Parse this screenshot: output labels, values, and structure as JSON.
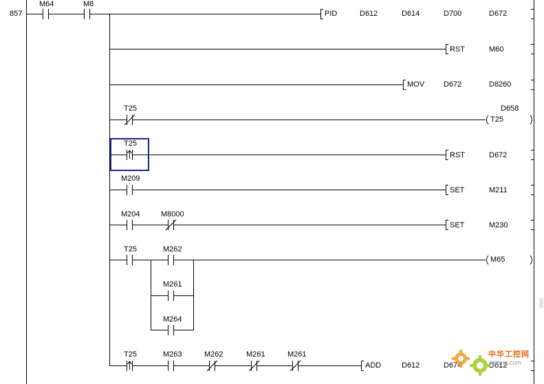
{
  "step_number": "857",
  "rungs": {
    "r1": {
      "contact_a": "M64",
      "contact_b": "M8",
      "instr": "PID",
      "op1": "D612",
      "op2": "D614",
      "op3": "D700",
      "op4": "D672"
    },
    "r2": {
      "instr": "RST",
      "op1": "M60"
    },
    "r3": {
      "instr": "MOV",
      "op1": "D672",
      "op2": "D8260"
    },
    "r4": {
      "contact": "T25",
      "coil": "T25",
      "preset": "D658"
    },
    "r5": {
      "contact": "T25",
      "instr": "RST",
      "op1": "D672"
    },
    "r6": {
      "contact": "M209",
      "instr": "SET",
      "op1": "M211"
    },
    "r7": {
      "contact_a": "M204",
      "contact_b": "M8000",
      "instr": "SET",
      "op1": "M230"
    },
    "r8": {
      "contact_a": "T25",
      "contact_b": "M262",
      "contact_c": "M261",
      "contact_d": "M264",
      "coil": "M65"
    },
    "r9": {
      "contact_a": "T25",
      "contact_b": "M263",
      "contact_c": "M262",
      "contact_d": "M261",
      "contact_e": "M261",
      "instr": "ADD",
      "op1": "D612",
      "op2": "D674",
      "op3": "D612"
    }
  },
  "watermark": {
    "line1": "中华工控网",
    "line2": "gkong.com"
  },
  "colors": {
    "selection_border": "#1a237e",
    "line": "#000000",
    "watermark_orange": "#e86a10",
    "watermark_green": "#9ccc20"
  },
  "icons": {
    "watermark_logo": "gear-logo-icon"
  }
}
